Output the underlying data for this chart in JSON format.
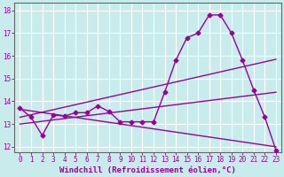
{
  "xlabel": "Windchill (Refroidissement éolien,°C)",
  "bg_color": "#c8ecec",
  "grid_color": "#ffffff",
  "line_color": "#990099",
  "xlim": [
    -0.5,
    23.5
  ],
  "ylim": [
    11.75,
    18.35
  ],
  "yticks": [
    12,
    13,
    14,
    15,
    16,
    17,
    18
  ],
  "xticks": [
    0,
    1,
    2,
    3,
    4,
    5,
    6,
    7,
    8,
    9,
    10,
    11,
    12,
    13,
    14,
    15,
    16,
    17,
    18,
    19,
    20,
    21,
    22,
    23
  ],
  "main_x": [
    0,
    1,
    2,
    3,
    4,
    5,
    6,
    7,
    8,
    9,
    10,
    11,
    12,
    13,
    14,
    15,
    16,
    17,
    18,
    19,
    20,
    21,
    22,
    23
  ],
  "main_y": [
    13.7,
    13.3,
    12.5,
    13.4,
    13.35,
    13.5,
    13.5,
    13.8,
    13.55,
    13.1,
    13.1,
    13.1,
    13.1,
    14.4,
    15.8,
    16.8,
    17.0,
    17.8,
    17.8,
    17.0,
    15.8,
    14.5,
    13.3,
    11.85
  ],
  "line1_x": [
    0,
    23
  ],
  "line1_y": [
    13.3,
    15.85
  ],
  "line2_x": [
    0,
    23
  ],
  "line2_y": [
    13.65,
    12.0
  ],
  "line3_x": [
    0,
    23
  ],
  "line3_y": [
    13.0,
    14.4
  ],
  "marker": "D",
  "markersize": 2.5,
  "linewidth": 1.0,
  "xlabel_fontsize": 6.5,
  "tick_fontsize": 5.5
}
